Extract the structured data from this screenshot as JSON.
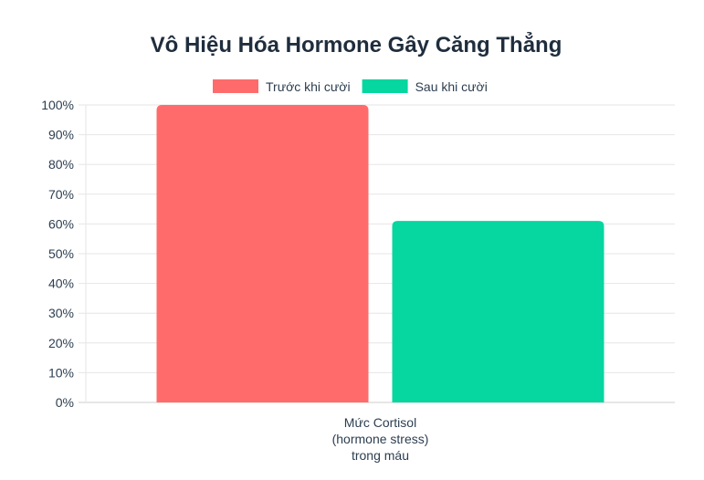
{
  "chart_data": {
    "type": "bar",
    "title": "Vô Hiệu Hóa Hormone Gây Căng Thẳng",
    "categories": [
      "Mức Cortisol\n(hormone stress)\ntrong máu"
    ],
    "category_lines": [
      "Mức Cortisol",
      "(hormone stress)",
      "trong máu"
    ],
    "series": [
      {
        "name": "Trước khi cười",
        "values": [
          100
        ],
        "color": "#ff6b6b"
      },
      {
        "name": "Sau khi cười",
        "values": [
          61
        ],
        "color": "#06d6a0"
      }
    ],
    "ylim": [
      0,
      100
    ],
    "yticks": [
      "0%",
      "10%",
      "20%",
      "30%",
      "40%",
      "50%",
      "60%",
      "70%",
      "80%",
      "90%",
      "100%"
    ],
    "grid": true,
    "legend": "top"
  }
}
